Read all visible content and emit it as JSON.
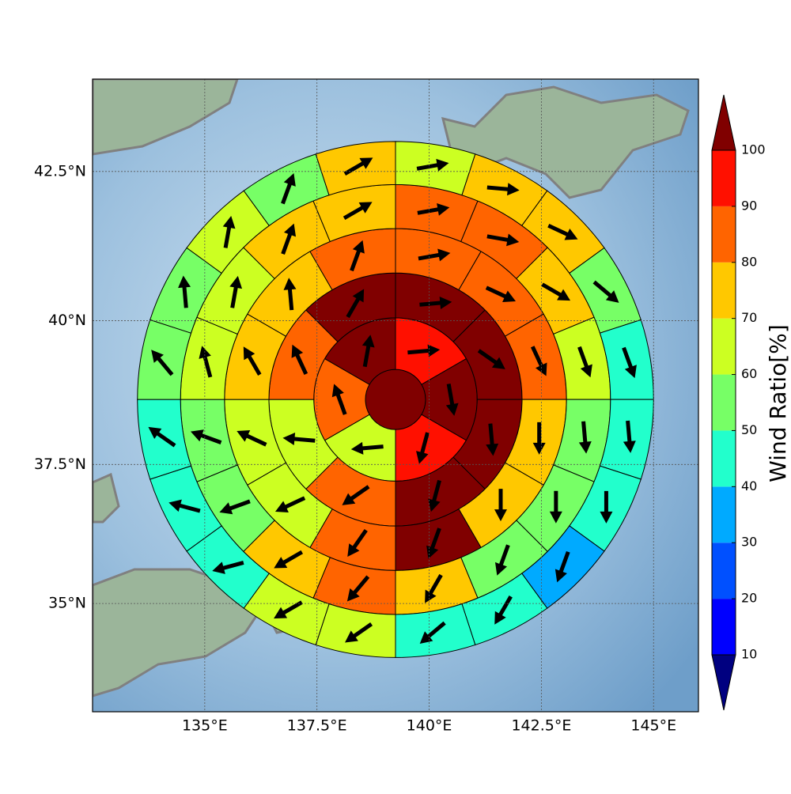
{
  "chart_data": {
    "type": "sector-wind-map",
    "projection": "mercator",
    "xlim": [
      132.5,
      146
    ],
    "ylim": [
      33,
      44
    ],
    "xticks": [
      {
        "value": 135,
        "label": "135°E"
      },
      {
        "value": 137.5,
        "label": "137.5°E"
      },
      {
        "value": 140,
        "label": "140°E"
      },
      {
        "value": 142.5,
        "label": "142.5°E"
      },
      {
        "value": 145,
        "label": "145°E"
      }
    ],
    "yticks": [
      {
        "value": 35,
        "label": "35°N"
      },
      {
        "value": 37.5,
        "label": "37.5°N"
      },
      {
        "value": 40,
        "label": "40°N"
      },
      {
        "value": 42.5,
        "label": "42.5°N"
      }
    ],
    "grid": true,
    "center": {
      "lon": 139.25,
      "lat": 38.64
    },
    "ring_edges_deg": [
      0.67,
      1.82,
      2.82,
      3.81,
      4.79,
      5.75
    ],
    "center_value": 105,
    "rings": [
      {
        "values": [
          95,
          105,
          93,
          65,
          85,
          105
        ],
        "directions": [
          85,
          170,
          195,
          265,
          340,
          10
        ]
      },
      {
        "values": [
          105,
          105,
          105,
          105,
          85,
          65,
          85,
          105
        ],
        "directions": [
          85,
          125,
          175,
          195,
          235,
          275,
          335,
          30
        ]
      },
      {
        "values": [
          85,
          85,
          85,
          75,
          75,
          105,
          85,
          65,
          65,
          75,
          75,
          85
        ],
        "directions": [
          80,
          115,
          155,
          180,
          180,
          200,
          215,
          245,
          295,
          330,
          355,
          20
        ]
      },
      {
        "values": [
          85,
          85,
          75,
          65,
          55,
          55,
          55,
          75,
          85,
          75,
          55,
          55,
          65,
          65,
          75,
          75
        ],
        "directions": [
          80,
          100,
          120,
          160,
          175,
          180,
          200,
          210,
          220,
          240,
          250,
          290,
          345,
          10,
          20,
          60
        ]
      },
      {
        "values": [
          65,
          75,
          75,
          55,
          45,
          45,
          45,
          35,
          45,
          45,
          65,
          65,
          45,
          45,
          45,
          55,
          55,
          65,
          55,
          75
        ],
        "directions": [
          80,
          95,
          115,
          130,
          160,
          175,
          180,
          200,
          210,
          230,
          235,
          240,
          255,
          285,
          305,
          320,
          355,
          10,
          20,
          60
        ]
      }
    ],
    "colorbar": {
      "label": "Wind Ratio[%]",
      "ticks": [
        10,
        20,
        30,
        40,
        50,
        60,
        70,
        80,
        90,
        100
      ],
      "colors": [
        "#000080",
        "#0000ff",
        "#0050ff",
        "#00aaff",
        "#22ffcc",
        "#77ff66",
        "#ccff22",
        "#ffc800",
        "#ff6400",
        "#ff1000",
        "#800000"
      ],
      "extend": "both"
    }
  }
}
